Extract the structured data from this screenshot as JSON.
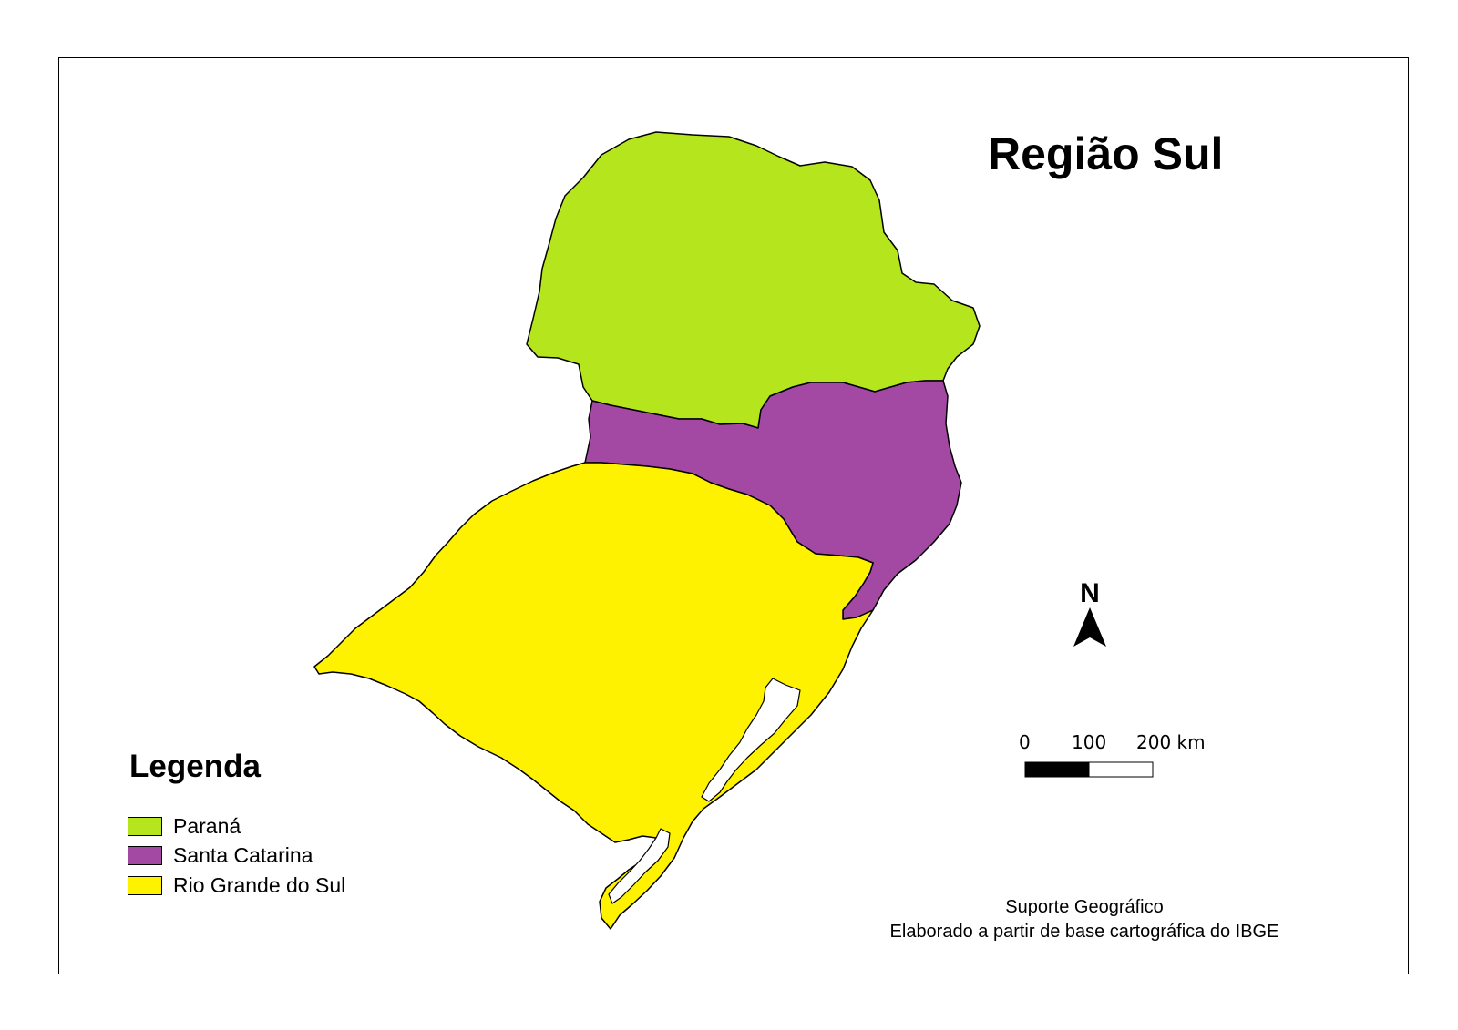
{
  "map": {
    "title": "Região Sul",
    "legend": {
      "title": "Legenda",
      "items": [
        {
          "label": "Paraná",
          "color": "#b5e61d"
        },
        {
          "label": "Santa Catarina",
          "color": "#a349a4"
        },
        {
          "label": "Rio Grande do Sul",
          "color": "#fff200"
        }
      ]
    },
    "north_arrow": {
      "label": "N"
    },
    "scale_bar": {
      "labels": [
        "0",
        "100",
        "200 km"
      ]
    },
    "credits": {
      "line1": "Suporte Geográfico",
      "line2": "Elaborado a partir de base cartográfica do IBGE"
    },
    "colors": {
      "lagoon": "#ffffff",
      "border": "#000000"
    }
  }
}
